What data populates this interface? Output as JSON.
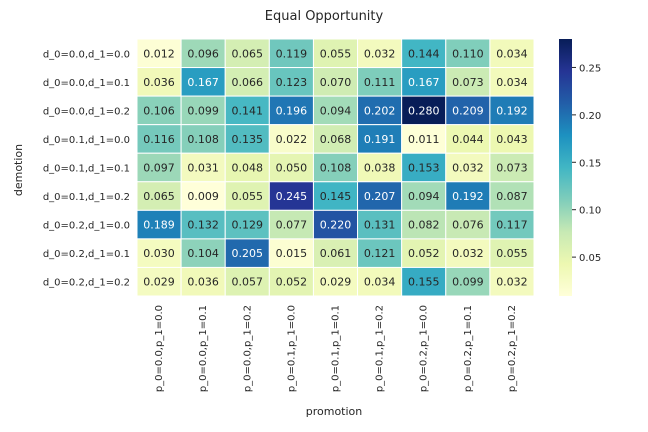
{
  "chart_data": {
    "type": "heatmap",
    "title": "Equal Opportunity",
    "xlabel": "promotion",
    "ylabel": "demotion",
    "x_categories": [
      "p_0=0.0,p_1=0.0",
      "p_0=0.0,p_1=0.1",
      "p_0=0.0,p_1=0.2",
      "p_0=0.1,p_1=0.0",
      "p_0=0.1,p_1=0.1",
      "p_0=0.1,p_1=0.2",
      "p_0=0.2,p_1=0.0",
      "p_0=0.2,p_1=0.1",
      "p_0=0.2,p_1=0.2"
    ],
    "y_categories": [
      "d_0=0.0,d_1=0.0",
      "d_0=0.0,d_1=0.1",
      "d_0=0.0,d_1=0.2",
      "d_0=0.1,d_1=0.0",
      "d_0=0.1,d_1=0.1",
      "d_0=0.1,d_1=0.2",
      "d_0=0.2,d_1=0.0",
      "d_0=0.2,d_1=0.1",
      "d_0=0.2,d_1=0.2"
    ],
    "values": [
      [
        0.012,
        0.096,
        0.065,
        0.119,
        0.055,
        0.032,
        0.144,
        0.11,
        0.034
      ],
      [
        0.036,
        0.167,
        0.066,
        0.123,
        0.07,
        0.111,
        0.167,
        0.073,
        0.034
      ],
      [
        0.106,
        0.099,
        0.141,
        0.196,
        0.094,
        0.202,
        0.28,
        0.209,
        0.192
      ],
      [
        0.116,
        0.108,
        0.135,
        0.022,
        0.068,
        0.191,
        0.011,
        0.044,
        0.043
      ],
      [
        0.097,
        0.031,
        0.048,
        0.05,
        0.108,
        0.038,
        0.153,
        0.032,
        0.073
      ],
      [
        0.065,
        0.009,
        0.055,
        0.245,
        0.145,
        0.207,
        0.094,
        0.192,
        0.087
      ],
      [
        0.189,
        0.132,
        0.129,
        0.077,
        0.22,
        0.131,
        0.082,
        0.076,
        0.117
      ],
      [
        0.03,
        0.104,
        0.205,
        0.015,
        0.061,
        0.121,
        0.052,
        0.032,
        0.055
      ],
      [
        0.029,
        0.036,
        0.057,
        0.052,
        0.029,
        0.034,
        0.155,
        0.099,
        0.032
      ]
    ],
    "value_range": [
      0.009,
      0.28
    ],
    "colormap": "YlGnBu",
    "colorbar": {
      "ticks": [
        0.05,
        0.1,
        0.15,
        0.2,
        0.25
      ],
      "tick_labels": [
        "0.05",
        "0.10",
        "0.15",
        "0.20",
        "0.25"
      ]
    },
    "annotated": true,
    "cell_border_color": "#ffffff"
  }
}
